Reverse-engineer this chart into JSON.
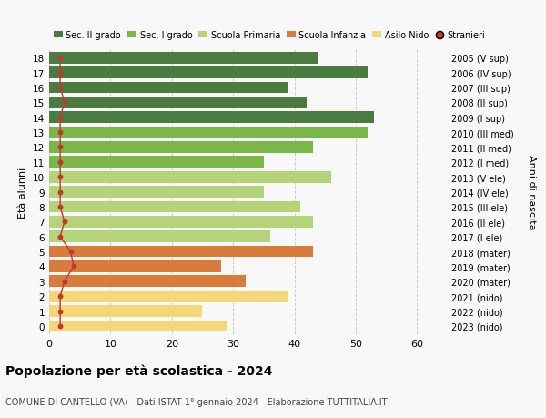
{
  "ages": [
    18,
    17,
    16,
    15,
    14,
    13,
    12,
    11,
    10,
    9,
    8,
    7,
    6,
    5,
    4,
    3,
    2,
    1,
    0
  ],
  "bar_values": [
    44,
    52,
    39,
    42,
    53,
    52,
    43,
    35,
    46,
    35,
    41,
    43,
    36,
    43,
    28,
    32,
    39,
    25,
    29
  ],
  "stranieri_x": [
    1.8,
    1.8,
    1.8,
    2.5,
    1.8,
    1.8,
    1.8,
    1.8,
    1.8,
    1.8,
    1.8,
    2.5,
    1.8,
    3.5,
    4.0,
    2.5,
    1.8,
    1.8,
    1.8
  ],
  "right_labels": [
    "2005 (V sup)",
    "2006 (IV sup)",
    "2007 (III sup)",
    "2008 (II sup)",
    "2009 (I sup)",
    "2010 (III med)",
    "2011 (II med)",
    "2012 (I med)",
    "2013 (V ele)",
    "2014 (IV ele)",
    "2015 (III ele)",
    "2016 (II ele)",
    "2017 (I ele)",
    "2018 (mater)",
    "2019 (mater)",
    "2020 (mater)",
    "2021 (nido)",
    "2022 (nido)",
    "2023 (nido)"
  ],
  "bar_colors": [
    "#4a7c3f",
    "#4a7c3f",
    "#4a7c3f",
    "#4a7c3f",
    "#4a7c3f",
    "#7ab648",
    "#7ab648",
    "#7ab648",
    "#b5d47a",
    "#b5d47a",
    "#b5d47a",
    "#b5d47a",
    "#b5d47a",
    "#d97b3a",
    "#d97b3a",
    "#d97b3a",
    "#f5d77a",
    "#f5d77a",
    "#f5d77a"
  ],
  "legend_labels": [
    "Sec. II grado",
    "Sec. I grado",
    "Scuola Primaria",
    "Scuola Infanzia",
    "Asilo Nido",
    "Stranieri"
  ],
  "legend_colors": [
    "#4a7c3f",
    "#7ab648",
    "#b5d47a",
    "#d97b3a",
    "#f5d77a",
    "#c0392b"
  ],
  "ylabel": "Età alunni",
  "right_ylabel": "Anni di nascita",
  "title": "Popolazione per età scolastica - 2024",
  "subtitle": "COMUNE DI CANTELLO (VA) - Dati ISTAT 1° gennaio 2024 - Elaborazione TUTTITALIA.IT",
  "xlim": [
    0,
    65
  ],
  "bg_color": "#f8f8f8",
  "grid_color": "#cccccc",
  "stranieri_color": "#c0392b",
  "bar_height": 0.78
}
